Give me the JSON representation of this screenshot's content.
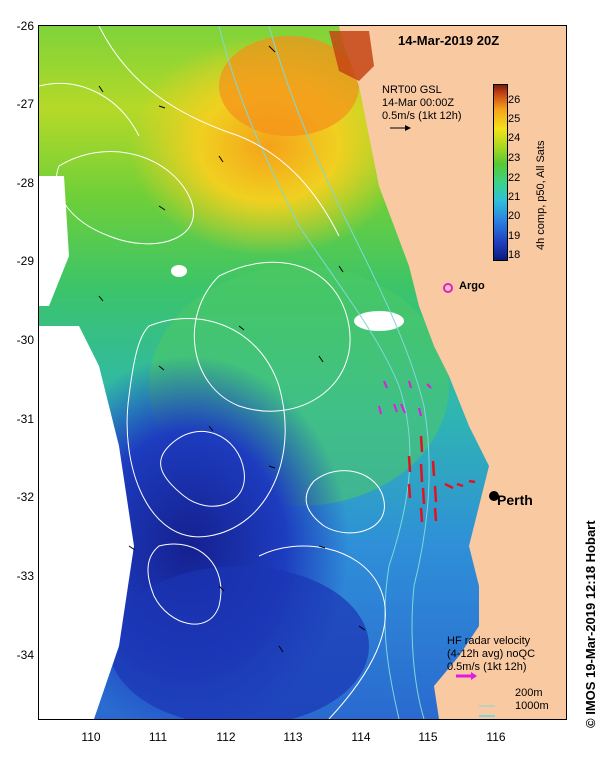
{
  "header": {
    "date_title": "14-Mar-2019 20Z"
  },
  "axes": {
    "y_labels": [
      "-26",
      "-27",
      "-28",
      "-29",
      "-30",
      "-31",
      "-32",
      "-33",
      "-34"
    ],
    "x_labels": [
      "110",
      "111",
      "112",
      "113",
      "114",
      "115",
      "116"
    ]
  },
  "gsl_legend": {
    "line1": "NRT00 GSL",
    "line2": "14-Mar 00:00Z",
    "line3": "0.5m/s (1kt 12h)"
  },
  "colorbar": {
    "ticks": [
      "26",
      "25",
      "24",
      "23",
      "22",
      "21",
      "20",
      "19",
      "18"
    ],
    "label": "4h comp, p50, All Sats"
  },
  "places": {
    "argo": "Argo",
    "perth": "Perth"
  },
  "hf_legend": {
    "line1": "HF radar velocity",
    "line2": "(4-12h avg) noQC",
    "line3": "0.5m/s (1kt 12h)"
  },
  "depth_legend": {
    "d200": "200m",
    "d1000": "1000m"
  },
  "credit": "IMOS 19-Mar-2019 12:18 Hobart",
  "copyright": "©",
  "colors": {
    "land": "#f9c9a2",
    "hf_arrow_red": "#e0141e",
    "hf_arrow_magenta": "#e01ae0",
    "argo": "#e01ae0",
    "contour": "#ffffff",
    "isobath": "#7fd8d8"
  }
}
